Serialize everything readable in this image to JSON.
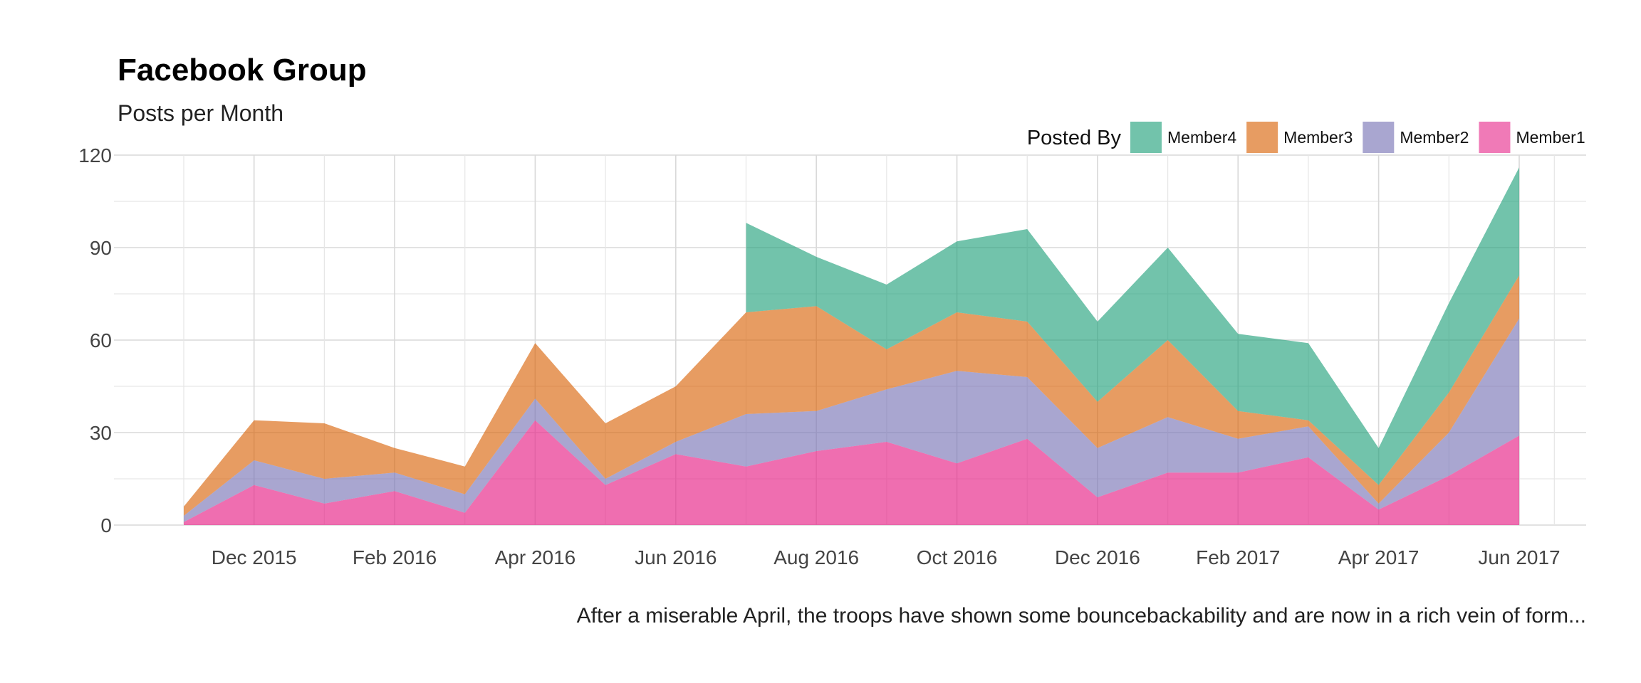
{
  "chart_data": {
    "type": "area",
    "stacked": true,
    "title": "Facebook Group",
    "subtitle": "Posts per Month",
    "caption": "After a miserable April, the troops have shown some bouncebackability and are now in a rich vein of form...",
    "xlabel": "",
    "ylabel": "",
    "ylim": [
      0,
      120
    ],
    "yticks": [
      0,
      30,
      60,
      90,
      120
    ],
    "grid": true,
    "legend": {
      "title": "Posted By",
      "position": "top-right",
      "order": [
        "Member4",
        "Member3",
        "Member2",
        "Member1"
      ]
    },
    "months": [
      "Nov 2015",
      "Dec 2015",
      "Jan 2016",
      "Feb 2016",
      "Mar 2016",
      "Apr 2016",
      "May 2016",
      "Jun 2016",
      "Jul 2016",
      "Aug 2016",
      "Sep 2016",
      "Oct 2016",
      "Nov 2016",
      "Dec 2016",
      "Jan 2017",
      "Feb 2017",
      "Mar 2017",
      "Apr 2017",
      "May 2017",
      "Jun 2017"
    ],
    "xtick_labels": [
      {
        "month_index": 1,
        "label": "Dec 2015"
      },
      {
        "month_index": 3,
        "label": "Feb 2016"
      },
      {
        "month_index": 5,
        "label": "Apr 2016"
      },
      {
        "month_index": 7,
        "label": "Jun 2016"
      },
      {
        "month_index": 9,
        "label": "Aug 2016"
      },
      {
        "month_index": 11,
        "label": "Oct 2016"
      },
      {
        "month_index": 13,
        "label": "Dec 2016"
      },
      {
        "month_index": 15,
        "label": "Feb 2017"
      },
      {
        "month_index": 17,
        "label": "Apr 2017"
      },
      {
        "month_index": 19,
        "label": "Jun 2017"
      }
    ],
    "series": [
      {
        "name": "Member1",
        "color": "#e7298a",
        "values": [
          1,
          13,
          7,
          11,
          4,
          34,
          13,
          23,
          19,
          24,
          27,
          20,
          28,
          9,
          17,
          17,
          22,
          5,
          16,
          29
        ]
      },
      {
        "name": "Member2",
        "color": "#7570b3",
        "values": [
          2,
          8,
          8,
          6,
          6,
          7,
          2,
          4,
          17,
          13,
          17,
          30,
          20,
          16,
          18,
          11,
          10,
          2,
          14,
          38
        ]
      },
      {
        "name": "Member3",
        "color": "#d95f02",
        "values": [
          3,
          13,
          18,
          8,
          9,
          18,
          18,
          18,
          33,
          34,
          13,
          19,
          18,
          15,
          25,
          9,
          2,
          6,
          13,
          14
        ]
      },
      {
        "name": "Member4",
        "color": "#1b9e77",
        "values": [
          0,
          0,
          0,
          0,
          0,
          0,
          0,
          0,
          29,
          16,
          21,
          23,
          30,
          26,
          30,
          25,
          25,
          12,
          29,
          35
        ]
      }
    ]
  }
}
